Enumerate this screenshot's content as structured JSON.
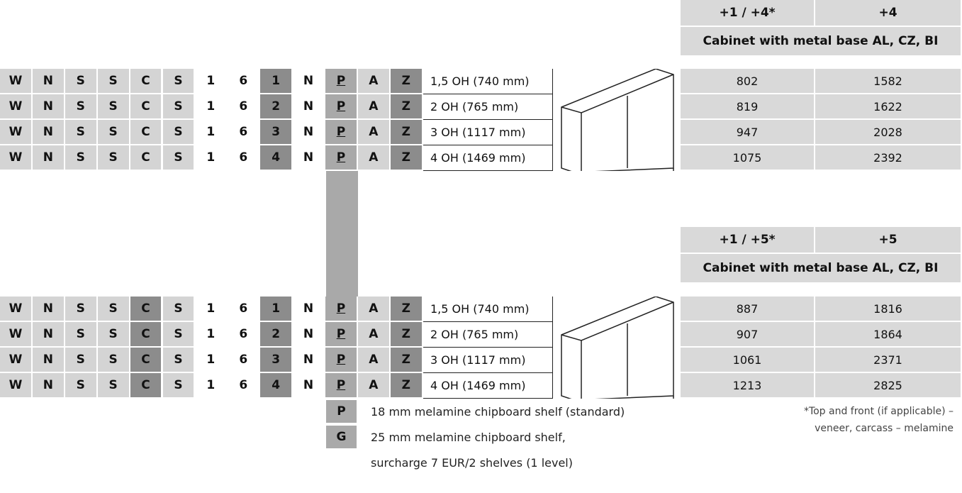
{
  "tables": [
    {
      "header": {
        "columns": [
          "+1 / +4*",
          "+4"
        ],
        "subtitle": "Cabinet with metal base AL, CZ, BI"
      },
      "rows": [
        {
          "code": [
            "W",
            "N",
            "S",
            "S",
            "C",
            "S",
            "1",
            "6",
            "1",
            "N",
            "P",
            "A",
            "Z"
          ],
          "description": "1,5 OH (740 mm)",
          "prices": [
            802,
            1582
          ]
        },
        {
          "code": [
            "W",
            "N",
            "S",
            "S",
            "C",
            "S",
            "1",
            "6",
            "2",
            "N",
            "P",
            "A",
            "Z"
          ],
          "description": "2 OH (765 mm)",
          "prices": [
            819,
            1622
          ]
        },
        {
          "code": [
            "W",
            "N",
            "S",
            "S",
            "C",
            "S",
            "1",
            "6",
            "3",
            "N",
            "P",
            "A",
            "Z"
          ],
          "description": "3 OH (1117 mm)",
          "prices": [
            947,
            2028
          ]
        },
        {
          "code": [
            "W",
            "N",
            "S",
            "S",
            "C",
            "S",
            "1",
            "6",
            "4",
            "N",
            "P",
            "A",
            "Z"
          ],
          "description": "4 OH (1469 mm)",
          "prices": [
            1075,
            2392
          ]
        }
      ]
    },
    {
      "header": {
        "columns": [
          "+1 / +5*",
          "+5"
        ],
        "subtitle": "Cabinet with metal base AL, CZ, BI"
      },
      "rows": [
        {
          "code": [
            "W",
            "N",
            "S",
            "S",
            "C",
            "S",
            "1",
            "6",
            "1",
            "N",
            "P",
            "A",
            "Z"
          ],
          "description": "1,5 OH (740 mm)",
          "prices": [
            887,
            1816
          ]
        },
        {
          "code": [
            "W",
            "N",
            "S",
            "S",
            "C",
            "S",
            "1",
            "6",
            "2",
            "N",
            "P",
            "A",
            "Z"
          ],
          "description": "2 OH (765 mm)",
          "prices": [
            907,
            1864
          ]
        },
        {
          "code": [
            "W",
            "N",
            "S",
            "S",
            "C",
            "S",
            "1",
            "6",
            "3",
            "N",
            "P",
            "A",
            "Z"
          ],
          "description": "3 OH (1117 mm)",
          "prices": [
            1061,
            2371
          ]
        },
        {
          "code": [
            "W",
            "N",
            "S",
            "S",
            "C",
            "S",
            "1",
            "6",
            "4",
            "N",
            "P",
            "A",
            "Z"
          ],
          "description": "4 OH (1469 mm)",
          "prices": [
            1213,
            2825
          ]
        }
      ]
    }
  ],
  "options": [
    {
      "code": "P",
      "text": "18 mm melamine chipboard shelf (standard)"
    },
    {
      "code": "G",
      "text": "25 mm melamine chipboard shelf,",
      "note": "surcharge 7 EUR/2 shelves (1 level)"
    }
  ],
  "footnote": [
    "*Top and front (if applicable) –",
    "veneer, carcass – melamine"
  ]
}
